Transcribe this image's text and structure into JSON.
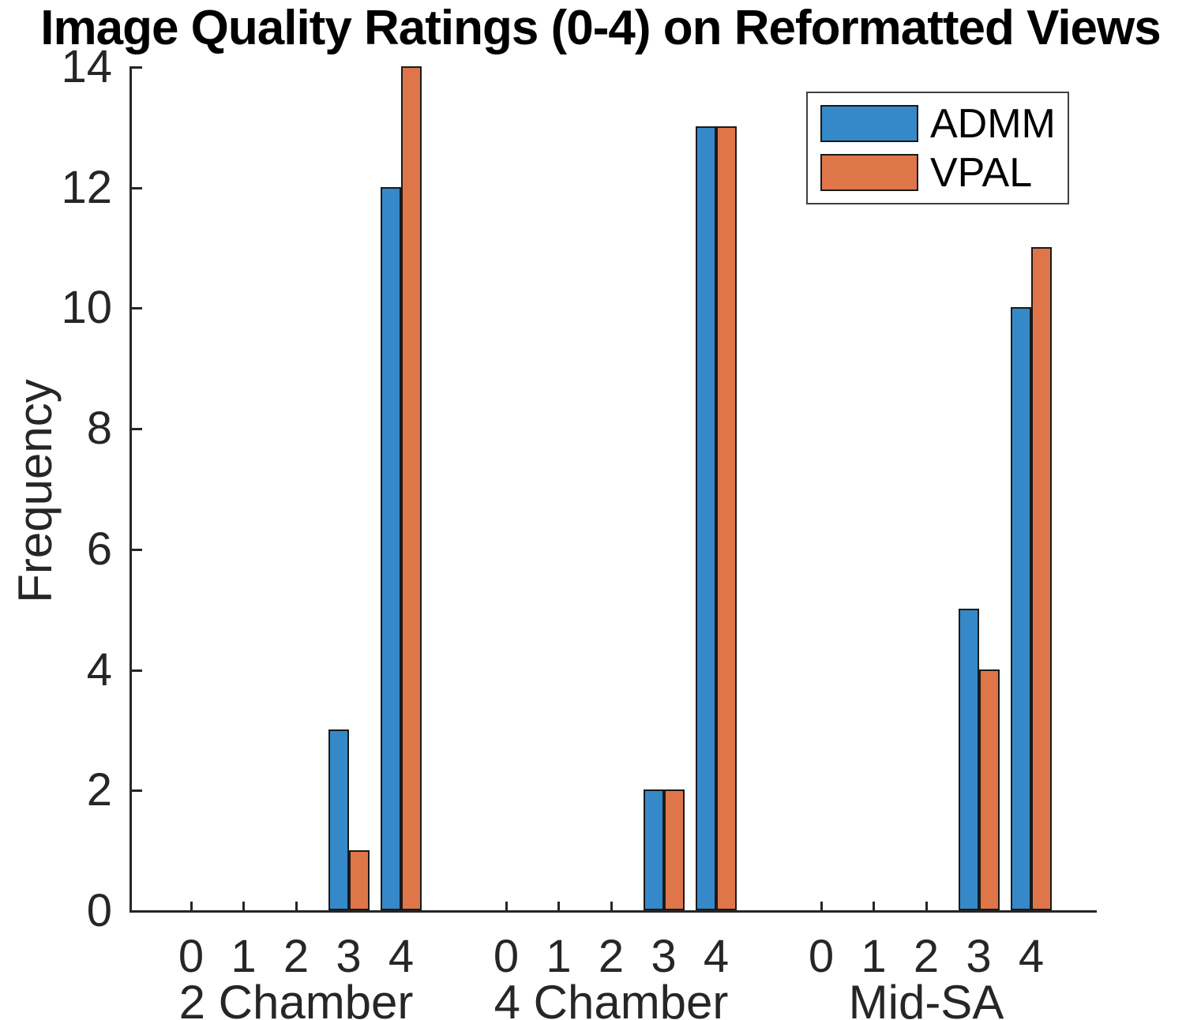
{
  "chart_data": {
    "type": "bar",
    "title": "Image Quality Ratings (0-4) on Reformatted Views",
    "xlabel": "",
    "ylabel": "Frequency",
    "ylim": [
      0,
      14
    ],
    "yticks": [
      0,
      2,
      4,
      6,
      8,
      10,
      12,
      14
    ],
    "xtick_labels": [
      "0",
      "1",
      "2",
      "3",
      "4"
    ],
    "group_labels": [
      "2 Chamber",
      "4 Chamber",
      "Mid-SA"
    ],
    "series": [
      {
        "name": "ADMM",
        "color": "#3589C8",
        "values": [
          [
            0,
            0,
            0,
            3,
            12
          ],
          [
            0,
            0,
            0,
            2,
            13
          ],
          [
            0,
            0,
            0,
            5,
            10
          ]
        ]
      },
      {
        "name": "VPAL",
        "color": "#DF7649",
        "values": [
          [
            0,
            0,
            0,
            1,
            14
          ],
          [
            0,
            0,
            0,
            2,
            13
          ],
          [
            0,
            0,
            0,
            4,
            11
          ]
        ]
      }
    ],
    "bar_edge_color": "#1a1a1a",
    "axis_color": "#262626",
    "legend_position": "top-right",
    "grid": false
  }
}
